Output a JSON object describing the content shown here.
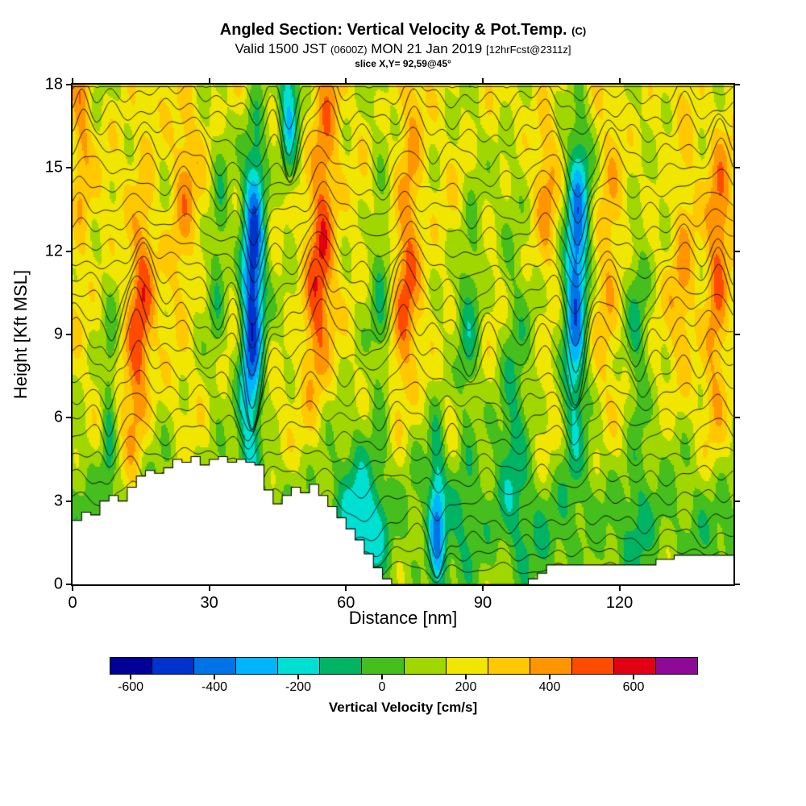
{
  "header": {
    "title": "Angled Section: Vertical Velocity & Pot.Temp.",
    "title_unit": "(C)",
    "valid_prefix": "Valid 1500 JST",
    "valid_small": "(0600Z)",
    "valid_date": "MON 21 Jan 2019",
    "fcst_tag": "[12hrFcst@2311z]",
    "slice": "slice X,Y= 92,59@45°"
  },
  "chart_data": {
    "type": "heatmap",
    "title": "Angled Section: Vertical Velocity & Pot.Temp. (C)",
    "subtitle": "Valid 1500 JST (0600Z) MON 21 Jan 2019 [12hrFcst@2311z]",
    "slice": "slice X,Y= 92,59@45°",
    "xlabel": "Distance [nm]",
    "ylabel": "Height [Kft MSL]",
    "xlim": [
      0,
      145
    ],
    "ylim": [
      0,
      18
    ],
    "xticks": [
      0,
      30,
      60,
      90,
      120
    ],
    "yticks": [
      0,
      3,
      6,
      9,
      12,
      15,
      18
    ],
    "grid": false,
    "overlay": "potential temperature isentropes (black contour lines)",
    "colorbar": {
      "label": "Vertical Velocity [cm/s]",
      "ticks": [
        -600,
        -400,
        -200,
        0,
        200,
        400,
        600
      ],
      "range": [
        -650,
        750
      ],
      "segment": 100,
      "colors": [
        "#000099",
        "#0033cc",
        "#0073e6",
        "#00b4ff",
        "#00e0d2",
        "#00b464",
        "#46be1e",
        "#a0d700",
        "#f0e600",
        "#ffc800",
        "#ff9600",
        "#ff4b00",
        "#e10014",
        "#8c0a96"
      ]
    },
    "field": {
      "units": "cm/s",
      "background": 180,
      "surface_dip": {
        "amp": 170,
        "z": 2.0,
        "depth": 2.8
      },
      "texture": {
        "amp1": 90,
        "kx1": 0.8,
        "p1": 0.9,
        "kz1": 1.4,
        "sx1": 0.25,
        "amp2": 50,
        "kx2": 0.33,
        "p2": 2.0,
        "kz2": 0.7,
        "p3": 1.0
      },
      "bands": [
        {
          "x": 2,
          "sx": 2.0,
          "amp": 220,
          "zc": 16,
          "sz": 4,
          "tilt": 0
        },
        {
          "x": 8,
          "sx": 1.6,
          "amp": -240,
          "zc": 6,
          "sz": 3.5,
          "tilt": 0.1
        },
        {
          "x": 14.5,
          "sx": 2.8,
          "amp": 320,
          "zc": 9,
          "sz": 6,
          "tilt": 0.25
        },
        {
          "x": 24.5,
          "sx": 2.8,
          "amp": 170,
          "zc": 14,
          "sz": 5,
          "tilt": 0.2
        },
        {
          "x": 32,
          "sx": 2.2,
          "amp": -200,
          "zc": 12,
          "sz": 5,
          "tilt": 0.15
        },
        {
          "x": 39.5,
          "sx": 2.6,
          "amp": -750,
          "zc": 10.5,
          "sz": 5.5,
          "tilt": 0.12
        },
        {
          "x": 47.5,
          "sx": 2.2,
          "amp": -400,
          "zc": 17,
          "sz": 3,
          "tilt": 0
        },
        {
          "x": 54.5,
          "sx": 3.0,
          "amp": 360,
          "zc": 12.5,
          "sz": 6,
          "tilt": 0.28
        },
        {
          "x": 63,
          "sx": 4.0,
          "amp": -260,
          "zc": 2.5,
          "sz": 3.5,
          "tilt": 0
        },
        {
          "x": 67.5,
          "sx": 2.2,
          "amp": -180,
          "zc": 10,
          "sz": 7,
          "tilt": 0
        },
        {
          "x": 73.5,
          "sx": 2.8,
          "amp": 280,
          "zc": 12,
          "sz": 6,
          "tilt": 0.22
        },
        {
          "x": 80,
          "sx": 1.8,
          "amp": -380,
          "zc": 2.5,
          "sz": 3.5,
          "tilt": 0
        },
        {
          "x": 87,
          "sx": 2.6,
          "amp": -220,
          "zc": 9,
          "sz": 6,
          "tilt": 0.15
        },
        {
          "x": 97,
          "sx": 3.5,
          "amp": -230,
          "zc": 7,
          "sz": 6,
          "tilt": 0
        },
        {
          "x": 104,
          "sx": 2.4,
          "amp": 160,
          "zc": 14,
          "sz": 4,
          "tilt": 0
        },
        {
          "x": 110.5,
          "sx": 2.6,
          "amp": -640,
          "zc": 11,
          "sz": 5.5,
          "tilt": 0.1
        },
        {
          "x": 117.5,
          "sx": 2.6,
          "amp": 150,
          "zc": 12,
          "sz": 6,
          "tilt": 0.1
        },
        {
          "x": 124,
          "sx": 2.6,
          "amp": -200,
          "zc": 8,
          "sz": 6,
          "tilt": 0
        },
        {
          "x": 134,
          "sx": 2.6,
          "amp": 170,
          "zc": 12,
          "sz": 5,
          "tilt": 0.1
        },
        {
          "x": 141.5,
          "sx": 2.6,
          "amp": 300,
          "zc": 11,
          "sz": 5,
          "tilt": 0.15
        }
      ]
    },
    "isentropes": {
      "count": 27,
      "z_start": 0.7,
      "z_step": 0.66,
      "w_ref": 100,
      "scale": 270,
      "damp_below": 2.5,
      "ripple": 0.1,
      "ripple_k": 0.55,
      "ripple_phase": 1.7,
      "fold": 0.25,
      "fold_k": 0.8,
      "fold_p": 1.0
    },
    "terrain_kft": [
      [
        0,
        2.3
      ],
      [
        2,
        2.6
      ],
      [
        4,
        2.5
      ],
      [
        6,
        3.0
      ],
      [
        8,
        3.2
      ],
      [
        10,
        3.0
      ],
      [
        12,
        3.5
      ],
      [
        14,
        3.9
      ],
      [
        16,
        4.1
      ],
      [
        18,
        4.0
      ],
      [
        20,
        4.2
      ],
      [
        22,
        4.5
      ],
      [
        24,
        4.4
      ],
      [
        26,
        4.6
      ],
      [
        28,
        4.3
      ],
      [
        30,
        4.5
      ],
      [
        32,
        4.6
      ],
      [
        34,
        4.4
      ],
      [
        36,
        4.5
      ],
      [
        38,
        4.4
      ],
      [
        40,
        4.3
      ],
      [
        42,
        3.4
      ],
      [
        44,
        2.9
      ],
      [
        46,
        3.2
      ],
      [
        48,
        3.5
      ],
      [
        50,
        3.3
      ],
      [
        52,
        3.6
      ],
      [
        54,
        3.2
      ],
      [
        56,
        2.8
      ],
      [
        58,
        2.4
      ],
      [
        60,
        2.0
      ],
      [
        62,
        1.6
      ],
      [
        64,
        1.1
      ],
      [
        66,
        0.6
      ],
      [
        68,
        0.2
      ],
      [
        70,
        0.0
      ],
      [
        100,
        0.2
      ],
      [
        102,
        0.4
      ],
      [
        104,
        0.7
      ],
      [
        128,
        0.9
      ],
      [
        132,
        1.05
      ]
    ]
  },
  "colors": {
    "frame": "#000000",
    "background": "#ffffff"
  }
}
